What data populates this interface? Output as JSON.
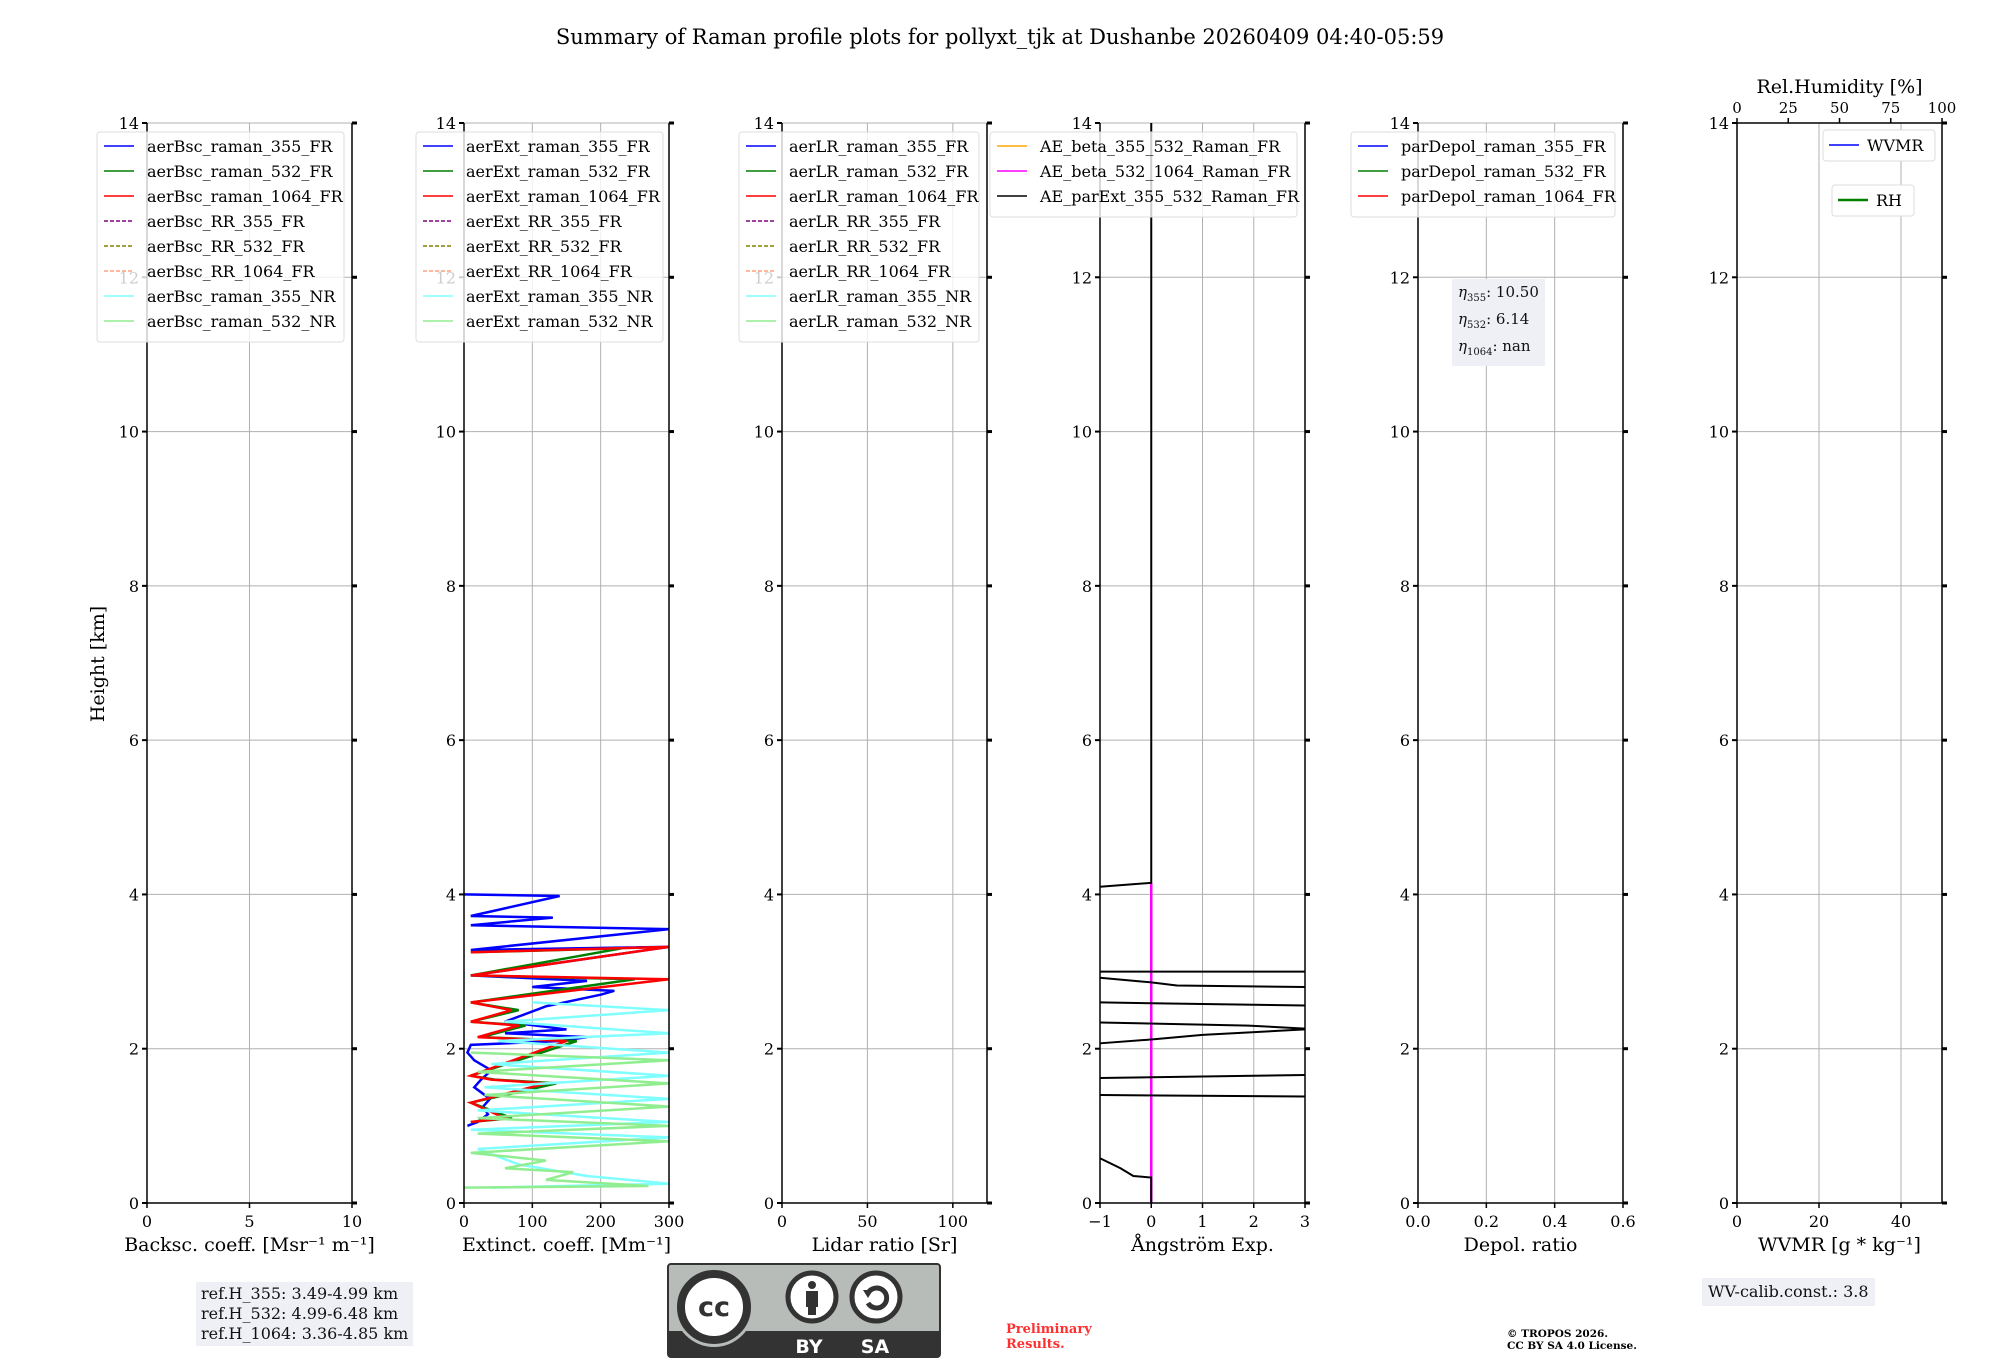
{
  "title": "Summary of Raman profile plots for pollyxt_tjk at Dushanbe 20260409 04:40-05:59",
  "ref_heights": [
    "ref.H_355: 3.49-4.99 km",
    "ref.H_532: 4.99-6.48 km",
    "ref.H_1064: 3.36-4.85 km"
  ],
  "eta": [
    {
      "sub": "355",
      "val": ": 10.50"
    },
    {
      "sub": "532",
      "val": ": 6.14"
    },
    {
      "sub": "1064",
      "val": ": nan"
    }
  ],
  "wv_calib": "WV-calib.const.: 3.8",
  "preliminary": [
    "Preliminary",
    "Results."
  ],
  "copyright": [
    "© TROPOS 2026.",
    "CC BY SA 4.0 License."
  ],
  "license_logo": {
    "cc": "cc",
    "by": "BY",
    "sa": "SA"
  },
  "colors": {
    "blue": "#0000ff",
    "green": "#008000",
    "red": "#ff0000",
    "purple": "#800080",
    "olive": "#808000",
    "salmon": "#ffa07a",
    "cyan": "#80ffff",
    "lightgreen": "#90ee90",
    "orange": "#ffa500",
    "magenta": "#ff00ff",
    "black": "#000000"
  },
  "chart_data": [
    {
      "type": "line",
      "id": "bsc",
      "ylabel": "Height [km]",
      "xlabel": "Backsc. coeff. [Msr⁻¹ m⁻¹]",
      "xlim": [
        0,
        10
      ],
      "ylim": [
        0,
        14
      ],
      "xticks": [
        0,
        5,
        10
      ],
      "yticks": [
        0,
        2,
        4,
        6,
        8,
        10,
        12,
        14
      ],
      "grid": true,
      "legend": "upper-left",
      "series": [
        {
          "name": "aerBsc_raman_355_FR",
          "color": "blue",
          "dash": false,
          "points": []
        },
        {
          "name": "aerBsc_raman_532_FR",
          "color": "green",
          "dash": false,
          "points": []
        },
        {
          "name": "aerBsc_raman_1064_FR",
          "color": "red",
          "dash": false,
          "points": []
        },
        {
          "name": "aerBsc_RR_355_FR",
          "color": "purple",
          "dash": true,
          "points": []
        },
        {
          "name": "aerBsc_RR_532_FR",
          "color": "olive",
          "dash": true,
          "points": []
        },
        {
          "name": "aerBsc_RR_1064_FR",
          "color": "salmon",
          "dash": true,
          "points": []
        },
        {
          "name": "aerBsc_raman_355_NR",
          "color": "cyan",
          "dash": false,
          "points": []
        },
        {
          "name": "aerBsc_raman_532_NR",
          "color": "lightgreen",
          "dash": false,
          "points": []
        }
      ]
    },
    {
      "type": "line",
      "id": "ext",
      "xlabel": "Extinct. coeff. [Mm⁻¹]",
      "xlim": [
        0,
        300
      ],
      "ylim": [
        0,
        14
      ],
      "xticks": [
        0,
        100,
        200,
        300
      ],
      "yticks": [
        0,
        2,
        4,
        6,
        8,
        10,
        12,
        14
      ],
      "grid": true,
      "legend": "upper-left",
      "series": [
        {
          "name": "aerExt_raman_355_FR",
          "color": "blue",
          "dash": false,
          "points": [
            [
              5,
              1.0
            ],
            [
              20,
              1.05
            ],
            [
              35,
              1.15
            ],
            [
              28,
              1.25
            ],
            [
              38,
              1.35
            ],
            [
              15,
              1.5
            ],
            [
              25,
              1.6
            ],
            [
              40,
              1.72
            ],
            [
              15,
              1.85
            ],
            [
              5,
              1.95
            ],
            [
              10,
              2.05
            ],
            [
              140,
              2.1
            ],
            [
              180,
              2.15
            ],
            [
              60,
              2.2
            ],
            [
              150,
              2.25
            ],
            [
              60,
              2.35
            ],
            [
              120,
              2.55
            ],
            [
              200,
              2.7
            ],
            [
              220,
              2.75
            ],
            [
              100,
              2.8
            ],
            [
              180,
              2.88
            ],
            [
              10,
              2.95
            ],
            [
              300,
              3.32
            ],
            [
              10,
              3.28
            ],
            [
              300,
              3.55
            ],
            [
              10,
              3.6
            ],
            [
              130,
              3.7
            ],
            [
              10,
              3.72
            ],
            [
              140,
              3.98
            ],
            [
              0,
              4.0
            ]
          ]
        },
        {
          "name": "aerExt_raman_532_FR",
          "color": "green",
          "dash": false,
          "points": [
            [
              10,
              1.05
            ],
            [
              70,
              1.1
            ],
            [
              10,
              1.3
            ],
            [
              135,
              1.55
            ],
            [
              45,
              1.6
            ],
            [
              10,
              1.65
            ],
            [
              165,
              2.1
            ],
            [
              25,
              2.15
            ],
            [
              90,
              2.3
            ],
            [
              10,
              2.35
            ],
            [
              80,
              2.5
            ],
            [
              10,
              2.6
            ],
            [
              250,
              2.9
            ],
            [
              10,
              2.95
            ],
            [
              230,
              3.3
            ],
            [
              10,
              3.25
            ]
          ]
        },
        {
          "name": "aerExt_raman_1064_FR",
          "color": "red",
          "dash": false,
          "points": [
            [
              10,
              1.05
            ],
            [
              60,
              1.1
            ],
            [
              10,
              1.3
            ],
            [
              120,
              1.55
            ],
            [
              40,
              1.6
            ],
            [
              10,
              1.65
            ],
            [
              150,
              2.1
            ],
            [
              20,
              2.15
            ],
            [
              80,
              2.3
            ],
            [
              10,
              2.35
            ],
            [
              70,
              2.5
            ],
            [
              10,
              2.6
            ],
            [
              300,
              2.9
            ],
            [
              10,
              2.95
            ],
            [
              300,
              3.32
            ],
            [
              10,
              3.25
            ]
          ]
        },
        {
          "name": "aerExt_RR_355_FR",
          "color": "purple",
          "dash": true,
          "points": []
        },
        {
          "name": "aerExt_RR_532_FR",
          "color": "olive",
          "dash": true,
          "points": []
        },
        {
          "name": "aerExt_RR_1064_FR",
          "color": "salmon",
          "dash": true,
          "points": []
        },
        {
          "name": "aerExt_raman_355_NR",
          "color": "cyan",
          "dash": false,
          "points": [
            [
              40,
              0.2
            ],
            [
              300,
              0.25
            ],
            [
              180,
              0.35
            ],
            [
              80,
              0.5
            ],
            [
              20,
              0.7
            ],
            [
              300,
              0.85
            ],
            [
              10,
              0.95
            ],
            [
              300,
              1.05
            ],
            [
              20,
              1.2
            ],
            [
              300,
              1.35
            ],
            [
              30,
              1.5
            ],
            [
              300,
              1.65
            ],
            [
              40,
              1.8
            ],
            [
              300,
              1.95
            ],
            [
              50,
              2.1
            ],
            [
              300,
              2.2
            ],
            [
              60,
              2.35
            ],
            [
              300,
              2.5
            ],
            [
              100,
              2.6
            ]
          ]
        },
        {
          "name": "aerExt_raman_532_NR",
          "color": "lightgreen",
          "dash": false,
          "points": [
            [
              0,
              0.2
            ],
            [
              270,
              0.22
            ],
            [
              120,
              0.3
            ],
            [
              160,
              0.4
            ],
            [
              60,
              0.45
            ],
            [
              120,
              0.55
            ],
            [
              10,
              0.65
            ],
            [
              300,
              0.8
            ],
            [
              20,
              0.9
            ],
            [
              300,
              1.0
            ],
            [
              20,
              1.1
            ],
            [
              300,
              1.25
            ],
            [
              30,
              1.4
            ],
            [
              300,
              1.55
            ],
            [
              20,
              1.7
            ],
            [
              300,
              1.85
            ],
            [
              10,
              1.95
            ]
          ]
        }
      ]
    },
    {
      "type": "line",
      "id": "lr",
      "xlabel": "Lidar ratio [Sr]",
      "xlim": [
        0,
        120
      ],
      "ylim": [
        0,
        14
      ],
      "xticks": [
        0,
        50,
        100
      ],
      "yticks": [
        0,
        2,
        4,
        6,
        8,
        10,
        12,
        14
      ],
      "grid": true,
      "legend": "upper-left",
      "series": [
        {
          "name": "aerLR_raman_355_FR",
          "color": "blue",
          "dash": false,
          "points": []
        },
        {
          "name": "aerLR_raman_532_FR",
          "color": "green",
          "dash": false,
          "points": []
        },
        {
          "name": "aerLR_raman_1064_FR",
          "color": "red",
          "dash": false,
          "points": []
        },
        {
          "name": "aerLR_RR_355_FR",
          "color": "purple",
          "dash": true,
          "points": []
        },
        {
          "name": "aerLR_RR_532_FR",
          "color": "olive",
          "dash": true,
          "points": []
        },
        {
          "name": "aerLR_RR_1064_FR",
          "color": "salmon",
          "dash": true,
          "points": []
        },
        {
          "name": "aerLR_raman_355_NR",
          "color": "cyan",
          "dash": false,
          "points": []
        },
        {
          "name": "aerLR_raman_532_NR",
          "color": "lightgreen",
          "dash": false,
          "points": []
        }
      ]
    },
    {
      "type": "line",
      "id": "ae",
      "xlabel": "Ångström Exp.",
      "xlim": [
        -1,
        3
      ],
      "ylim": [
        0,
        14
      ],
      "xticks": [
        -1,
        0,
        1,
        2,
        3
      ],
      "yticks": [
        0,
        2,
        4,
        6,
        8,
        10,
        12,
        14
      ],
      "grid": true,
      "legend": "upper-left",
      "series": [
        {
          "name": "AE_beta_355_532_Raman_FR",
          "color": "orange",
          "dash": false,
          "segments": []
        },
        {
          "name": "AE_beta_532_1064_Raman_FR",
          "color": "magenta",
          "dash": false,
          "segments": [
            [
              [
                0,
                0
              ],
              [
                0,
                4.15
              ]
            ]
          ]
        },
        {
          "name": "AE_parExt_355_532_Raman_FR",
          "color": "black",
          "dash": false,
          "segments": [
            [
              [
                0,
                0
              ],
              [
                0,
                0.33
              ],
              [
                -0.35,
                0.35
              ],
              [
                -0.6,
                0.45
              ],
              [
                -1,
                0.58
              ]
            ],
            [
              [
                -1,
                1.4
              ],
              [
                3,
                1.38
              ]
            ],
            [
              [
                -1,
                1.62
              ],
              [
                0,
                1.63
              ],
              [
                3,
                1.66
              ]
            ],
            [
              [
                -1,
                2.07
              ],
              [
                0,
                2.12
              ],
              [
                1,
                2.18
              ],
              [
                3,
                2.25
              ]
            ],
            [
              [
                -1,
                2.34
              ],
              [
                1.9,
                2.3
              ],
              [
                3,
                2.26
              ]
            ],
            [
              [
                -1,
                2.6
              ],
              [
                1,
                2.58
              ],
              [
                3,
                2.56
              ]
            ],
            [
              [
                -1,
                2.92
              ],
              [
                0,
                2.86
              ],
              [
                0.5,
                2.82
              ],
              [
                3,
                2.8
              ]
            ],
            [
              [
                -1,
                3.0
              ],
              [
                3,
                3.0
              ]
            ],
            [
              [
                -1,
                4.1
              ],
              [
                0,
                4.15
              ],
              [
                0,
                14
              ]
            ]
          ]
        }
      ]
    },
    {
      "type": "line",
      "id": "depol",
      "xlabel": "Depol. ratio",
      "xlim": [
        0,
        0.6
      ],
      "ylim": [
        0,
        14
      ],
      "xticks": [
        0.0,
        0.2,
        0.4,
        0.6
      ],
      "yticks": [
        0,
        2,
        4,
        6,
        8,
        10,
        12,
        14
      ],
      "grid": true,
      "legend": "upper-left",
      "series": [
        {
          "name": "parDepol_raman_355_FR",
          "color": "blue",
          "dash": false,
          "points": []
        },
        {
          "name": "parDepol_raman_532_FR",
          "color": "green",
          "dash": false,
          "points": []
        },
        {
          "name": "parDepol_raman_1064_FR",
          "color": "red",
          "dash": false,
          "points": []
        }
      ]
    },
    {
      "type": "line",
      "id": "wv",
      "xlabel": "WVMR [g * kg⁻¹]",
      "xlim": [
        0,
        50
      ],
      "ylim": [
        0,
        14
      ],
      "xticks": [
        0,
        20,
        40
      ],
      "yticks": [
        0,
        2,
        4,
        6,
        8,
        10,
        12,
        14
      ],
      "grid": true,
      "top_axis": {
        "label": "Rel.Humidity [%]",
        "lim": [
          0,
          100
        ],
        "ticks": [
          0,
          25,
          50,
          75,
          100
        ]
      },
      "series": [
        {
          "name": "WVMR",
          "color": "blue",
          "dash": false,
          "points": []
        },
        {
          "name": "RH",
          "color": "green",
          "dash": false,
          "points": []
        }
      ]
    }
  ]
}
